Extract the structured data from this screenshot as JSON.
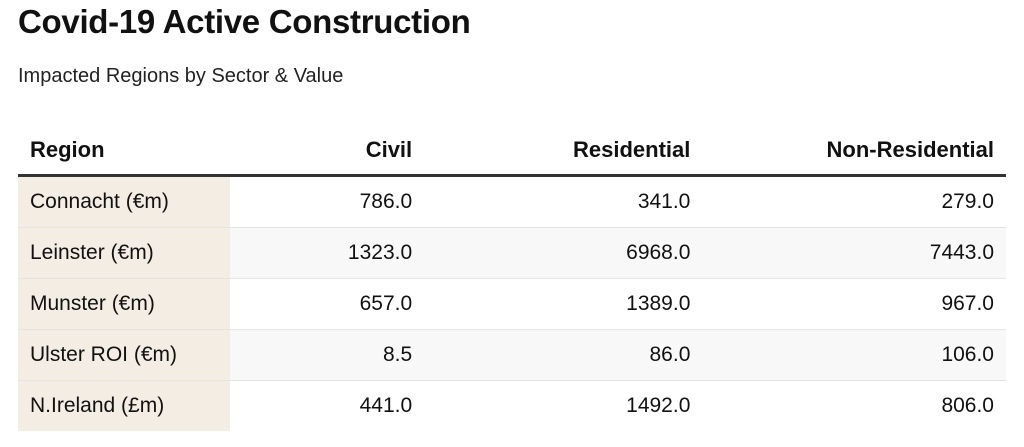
{
  "title": "Covid-19 Active Construction",
  "subtitle": "Impacted Regions by Sector & Value",
  "colors": {
    "region_column_bg": "#f3ede3",
    "header_rule": "#333333",
    "stripe_bg": "#f8f8f8"
  },
  "chart_data": {
    "type": "table",
    "title": "Covid-19 Active Construction",
    "subtitle": "Impacted Regions by Sector & Value",
    "columns": [
      "Region",
      "Civil",
      "Residential",
      "Non-Residential"
    ],
    "rows": [
      [
        "Connacht (€m)",
        "786.0",
        "341.0",
        "279.0"
      ],
      [
        "Leinster (€m)",
        "1323.0",
        "6968.0",
        "7443.0"
      ],
      [
        "Munster (€m)",
        "657.0",
        "1389.0",
        "967.0"
      ],
      [
        "Ulster ROI (€m)",
        "8.5",
        "86.0",
        "106.0"
      ],
      [
        "N.Ireland (£m)",
        "441.0",
        "1492.0",
        "806.0"
      ]
    ]
  }
}
